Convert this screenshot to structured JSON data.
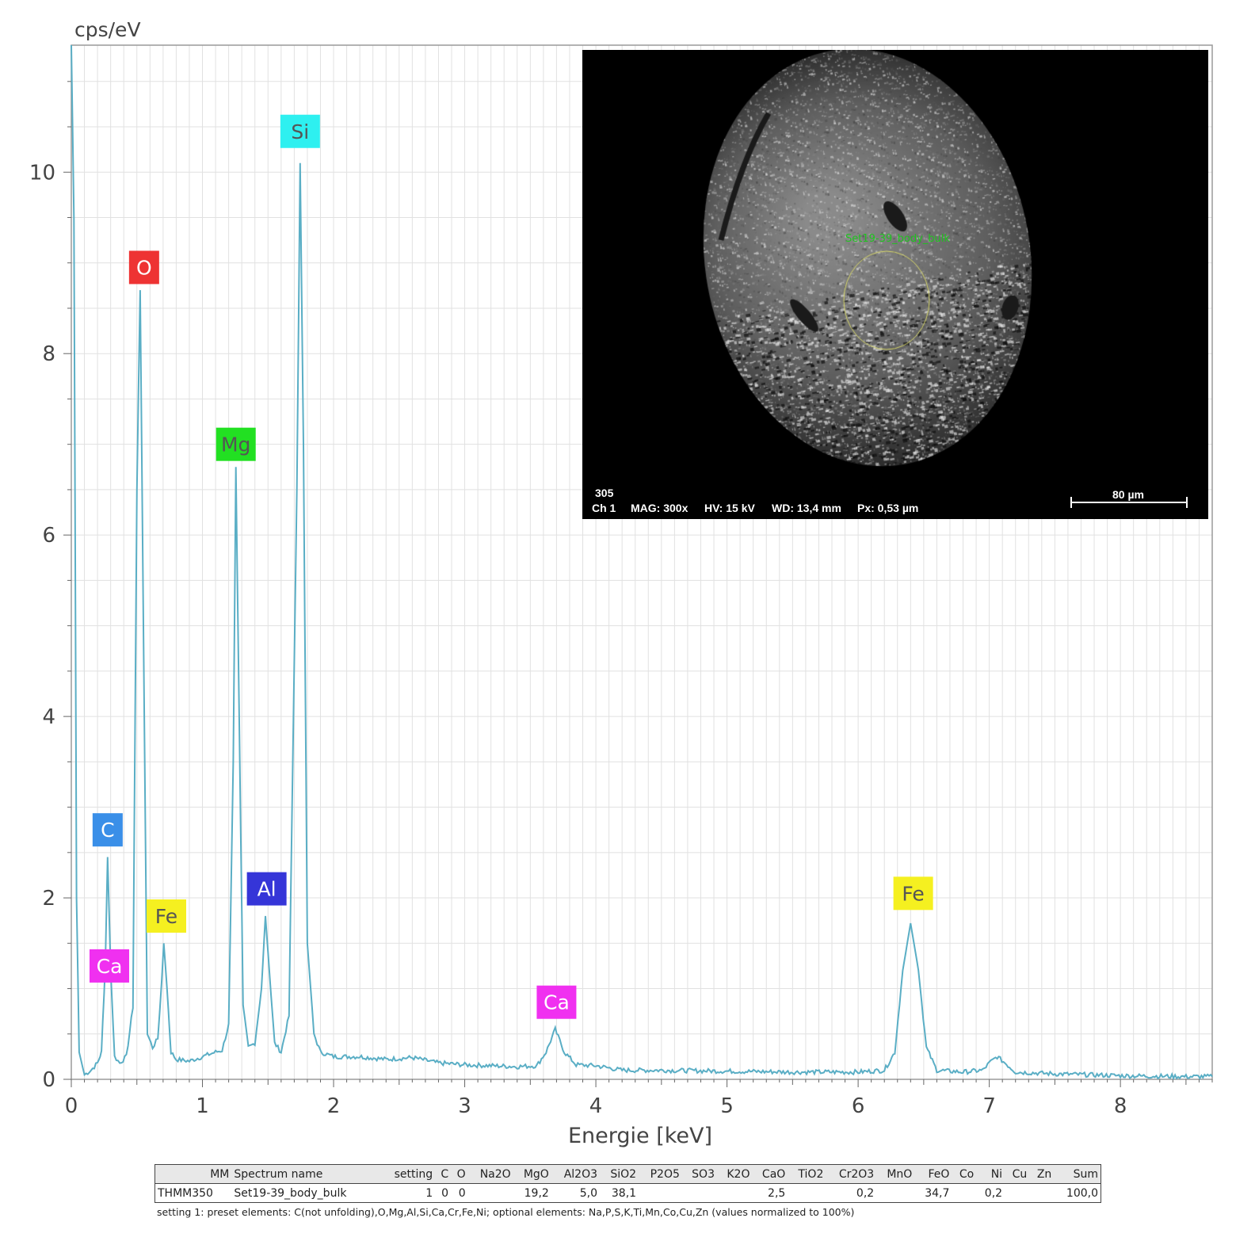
{
  "chart_data": {
    "type": "line",
    "ylabel": "cps/eV",
    "xlabel": "Energie [keV]",
    "xlim": [
      0,
      8.7
    ],
    "ylim": [
      0,
      11.4
    ],
    "x_ticks": [
      0,
      1,
      2,
      3,
      4,
      5,
      6,
      7,
      8
    ],
    "y_ticks": [
      0,
      2,
      4,
      6,
      8,
      10
    ],
    "grid": true,
    "series": [
      {
        "color": "#5aaec5",
        "points": [
          [
            0.0,
            11.4
          ],
          [
            0.02,
            9.5
          ],
          [
            0.04,
            2.0
          ],
          [
            0.06,
            0.3
          ],
          [
            0.1,
            0.05
          ],
          [
            0.15,
            0.1
          ],
          [
            0.2,
            0.18
          ],
          [
            0.23,
            0.3
          ],
          [
            0.26,
            1.3
          ],
          [
            0.277,
            2.45
          ],
          [
            0.3,
            1.2
          ],
          [
            0.33,
            0.25
          ],
          [
            0.37,
            0.18
          ],
          [
            0.42,
            0.25
          ],
          [
            0.47,
            0.8
          ],
          [
            0.5,
            6.5
          ],
          [
            0.525,
            8.7
          ],
          [
            0.55,
            5.0
          ],
          [
            0.58,
            0.5
          ],
          [
            0.62,
            0.35
          ],
          [
            0.66,
            0.45
          ],
          [
            0.69,
            1.1
          ],
          [
            0.705,
            1.5
          ],
          [
            0.73,
            1.0
          ],
          [
            0.76,
            0.3
          ],
          [
            0.8,
            0.22
          ],
          [
            0.9,
            0.2
          ],
          [
            1.0,
            0.25
          ],
          [
            1.1,
            0.3
          ],
          [
            1.15,
            0.32
          ],
          [
            1.2,
            0.6
          ],
          [
            1.235,
            3.5
          ],
          [
            1.255,
            6.75
          ],
          [
            1.28,
            4.0
          ],
          [
            1.31,
            0.8
          ],
          [
            1.35,
            0.35
          ],
          [
            1.4,
            0.4
          ],
          [
            1.45,
            1.0
          ],
          [
            1.48,
            1.8
          ],
          [
            1.51,
            1.2
          ],
          [
            1.55,
            0.4
          ],
          [
            1.6,
            0.3
          ],
          [
            1.66,
            0.7
          ],
          [
            1.72,
            6.5
          ],
          [
            1.745,
            10.1
          ],
          [
            1.77,
            7.0
          ],
          [
            1.8,
            1.5
          ],
          [
            1.85,
            0.5
          ],
          [
            1.9,
            0.3
          ],
          [
            2.0,
            0.25
          ],
          [
            2.2,
            0.25
          ],
          [
            2.4,
            0.22
          ],
          [
            2.6,
            0.24
          ],
          [
            2.8,
            0.18
          ],
          [
            3.0,
            0.16
          ],
          [
            3.2,
            0.15
          ],
          [
            3.4,
            0.14
          ],
          [
            3.55,
            0.15
          ],
          [
            3.62,
            0.3
          ],
          [
            3.69,
            0.55
          ],
          [
            3.76,
            0.3
          ],
          [
            3.85,
            0.16
          ],
          [
            4.0,
            0.15
          ],
          [
            4.2,
            0.1
          ],
          [
            4.5,
            0.1
          ],
          [
            5.0,
            0.09
          ],
          [
            5.5,
            0.08
          ],
          [
            6.0,
            0.08
          ],
          [
            6.2,
            0.1
          ],
          [
            6.28,
            0.3
          ],
          [
            6.34,
            1.2
          ],
          [
            6.4,
            1.72
          ],
          [
            6.46,
            1.2
          ],
          [
            6.52,
            0.35
          ],
          [
            6.6,
            0.1
          ],
          [
            6.8,
            0.08
          ],
          [
            6.95,
            0.1
          ],
          [
            7.0,
            0.18
          ],
          [
            7.06,
            0.25
          ],
          [
            7.12,
            0.18
          ],
          [
            7.2,
            0.08
          ],
          [
            7.5,
            0.06
          ],
          [
            8.0,
            0.04
          ],
          [
            8.5,
            0.03
          ],
          [
            8.7,
            0.03
          ]
        ]
      }
    ],
    "peak_labels": [
      {
        "label": "C",
        "x": 0.277,
        "y": 2.75,
        "bg": "#3a8fe8",
        "fg": "#ffffff"
      },
      {
        "label": "Ca",
        "x": 0.29,
        "y": 1.25,
        "bg": "#f030f0",
        "fg": "#ffffff"
      },
      {
        "label": "O",
        "x": 0.555,
        "y": 8.95,
        "bg": "#ee3333",
        "fg": "#ffffff"
      },
      {
        "label": "Fe",
        "x": 0.725,
        "y": 1.8,
        "bg": "#f5f020",
        "fg": "#555555"
      },
      {
        "label": "Mg",
        "x": 1.255,
        "y": 7.0,
        "bg": "#22e022",
        "fg": "#555555"
      },
      {
        "label": "Al",
        "x": 1.49,
        "y": 2.1,
        "bg": "#3535d8",
        "fg": "#ffffff"
      },
      {
        "label": "Si",
        "x": 1.745,
        "y": 10.45,
        "bg": "#2ef0f0",
        "fg": "#555555"
      },
      {
        "label": "Ca",
        "x": 3.7,
        "y": 0.85,
        "bg": "#f030f0",
        "fg": "#ffffff"
      },
      {
        "label": "Fe",
        "x": 6.42,
        "y": 2.05,
        "bg": "#f5f020",
        "fg": "#555555"
      }
    ]
  },
  "sem_inset": {
    "roi_label": "Set19-39_body_bulk",
    "image_id": "305",
    "channel": "Ch 1",
    "magnification": "MAG: 300x",
    "high_voltage": "HV: 15 kV",
    "working_distance": "WD: 13,4 mm",
    "pixel_size": "Px: 0,53 µm",
    "scale_bar_label": "80 µm"
  },
  "results_table": {
    "headers": [
      "MM",
      "Spectrum name",
      "setting",
      "C",
      "O",
      "Na2O",
      "MgO",
      "Al2O3",
      "SiO2",
      "P2O5",
      "SO3",
      "K2O",
      "CaO",
      "TiO2",
      "Cr2O3",
      "MnO",
      "FeO",
      "Co",
      "Ni",
      "Cu",
      "Zn",
      "Sum"
    ],
    "rows": [
      [
        "THMM350",
        "Set19-39_body_bulk",
        "1",
        "0",
        "0",
        "",
        "19,2",
        "5,0",
        "38,1",
        "",
        "",
        "",
        "2,5",
        "",
        "0,2",
        "",
        "34,7",
        "",
        "0,2",
        "",
        "",
        "100,0"
      ]
    ],
    "footnote": "setting 1: preset elements: C(not unfolding),O,Mg,Al,Si,Ca,Cr,Fe,Ni; optional elements: Na,P,S,K,Ti,Mn,Co,Cu,Zn (values normalized to 100%)"
  }
}
